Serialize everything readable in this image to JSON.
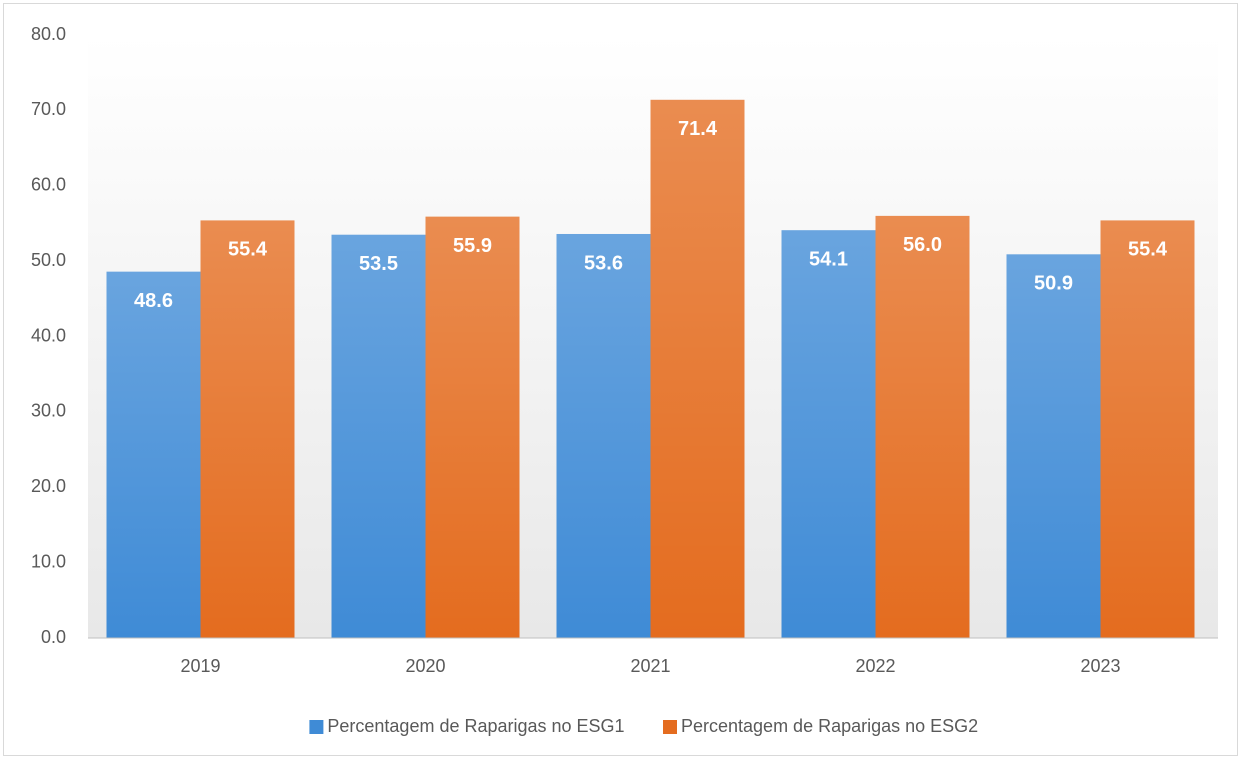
{
  "chart_data": {
    "type": "bar",
    "categories": [
      "2019",
      "2020",
      "2021",
      "2022",
      "2023"
    ],
    "series": [
      {
        "name": "Percentagem de Raparigas no ESG1",
        "color": "#3f8bd6",
        "values": [
          48.6,
          53.5,
          53.6,
          54.1,
          50.9
        ],
        "value_labels": [
          "48.6",
          "53.5",
          "53.6",
          "54.1",
          "50.9"
        ]
      },
      {
        "name": "Percentagem de Raparigas no ESG2",
        "color": "#e46c1f",
        "values": [
          55.4,
          55.9,
          71.4,
          56.0,
          55.4
        ],
        "value_labels": [
          "55.4",
          "55.9",
          "71.4",
          "56.0",
          "55.4"
        ]
      }
    ],
    "ylim": [
      0,
      80
    ],
    "yticks": [
      {
        "value": 0,
        "label": "0.0"
      },
      {
        "value": 10,
        "label": "10.0"
      },
      {
        "value": 20,
        "label": "20.0"
      },
      {
        "value": 30,
        "label": "30.0"
      },
      {
        "value": 40,
        "label": "40.0"
      },
      {
        "value": 50,
        "label": "50.0"
      },
      {
        "value": 60,
        "label": "60.0"
      },
      {
        "value": 70,
        "label": "70.0"
      },
      {
        "value": 80,
        "label": "80.0"
      }
    ],
    "grid": false,
    "legend": "bottom"
  }
}
